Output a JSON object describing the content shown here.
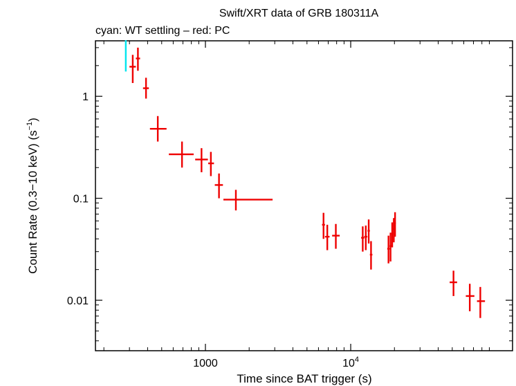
{
  "chart_data": {
    "type": "scatter",
    "title": "Swift/XRT data of GRB 180311A",
    "subtitle": "cyan: WT settling – red: PC",
    "xlabel": "Time since BAT trigger (s)",
    "ylabel": "Count Rate (0.3−10 keV) (s",
    "ylabel_sup": "−1",
    "ylabel_end": ")",
    "xscale": "log",
    "yscale": "log",
    "xlim": [
      175,
      130000
    ],
    "ylim": [
      0.0032,
      3.5
    ],
    "x_ticks": [
      {
        "value": 1000,
        "label": "1000"
      },
      {
        "value": 10000,
        "label": "10",
        "sup": "4"
      }
    ],
    "y_ticks": [
      {
        "value": 0.01,
        "label": "0.01"
      },
      {
        "value": 0.1,
        "label": "0.1"
      },
      {
        "value": 1,
        "label": "1"
      }
    ],
    "colors": {
      "wt": "#00e5ee",
      "pc": "#ee0000"
    },
    "series": [
      {
        "key": "wt",
        "points": [
          {
            "x": 283,
            "xlo": 282,
            "xhi": 284,
            "y": 2.5,
            "ylo": 1.75,
            "yhi": 3.55
          }
        ]
      },
      {
        "key": "pc",
        "points": [
          {
            "x": 316,
            "xlo": 300,
            "xhi": 332,
            "y": 1.95,
            "ylo": 1.35,
            "yhi": 2.55
          },
          {
            "x": 343,
            "xlo": 332,
            "xhi": 355,
            "y": 2.35,
            "ylo": 1.78,
            "yhi": 3.0
          },
          {
            "x": 390,
            "xlo": 372,
            "xhi": 408,
            "y": 1.2,
            "ylo": 0.95,
            "yhi": 1.52
          },
          {
            "x": 470,
            "xlo": 415,
            "xhi": 540,
            "y": 0.48,
            "ylo": 0.36,
            "yhi": 0.64
          },
          {
            "x": 690,
            "xlo": 560,
            "xhi": 830,
            "y": 0.27,
            "ylo": 0.2,
            "yhi": 0.36
          },
          {
            "x": 940,
            "xlo": 850,
            "xhi": 1040,
            "y": 0.24,
            "ylo": 0.18,
            "yhi": 0.31
          },
          {
            "x": 1090,
            "xlo": 1045,
            "xhi": 1145,
            "y": 0.22,
            "ylo": 0.165,
            "yhi": 0.285
          },
          {
            "x": 1240,
            "xlo": 1160,
            "xhi": 1320,
            "y": 0.135,
            "ylo": 0.1,
            "yhi": 0.175
          },
          {
            "x": 1620,
            "xlo": 1330,
            "xhi": 2900,
            "y": 0.097,
            "ylo": 0.076,
            "yhi": 0.121
          },
          {
            "x": 6500,
            "xlo": 6350,
            "xhi": 6650,
            "y": 0.055,
            "ylo": 0.04,
            "yhi": 0.072
          },
          {
            "x": 6900,
            "xlo": 6650,
            "xhi": 7150,
            "y": 0.042,
            "ylo": 0.031,
            "yhi": 0.055
          },
          {
            "x": 7900,
            "xlo": 7450,
            "xhi": 8400,
            "y": 0.043,
            "ylo": 0.032,
            "yhi": 0.056
          },
          {
            "x": 12100,
            "xlo": 11800,
            "xhi": 12400,
            "y": 0.041,
            "ylo": 0.03,
            "yhi": 0.053
          },
          {
            "x": 12700,
            "xlo": 12400,
            "xhi": 13000,
            "y": 0.042,
            "ylo": 0.031,
            "yhi": 0.054
          },
          {
            "x": 13300,
            "xlo": 13050,
            "xhi": 13550,
            "y": 0.048,
            "ylo": 0.036,
            "yhi": 0.062
          },
          {
            "x": 13800,
            "xlo": 13550,
            "xhi": 14100,
            "y": 0.028,
            "ylo": 0.02,
            "yhi": 0.038
          },
          {
            "x": 18200,
            "xlo": 17850,
            "xhi": 18550,
            "y": 0.032,
            "ylo": 0.023,
            "yhi": 0.043
          },
          {
            "x": 18800,
            "xlo": 18500,
            "xhi": 19100,
            "y": 0.034,
            "ylo": 0.024,
            "yhi": 0.046
          },
          {
            "x": 19300,
            "xlo": 19050,
            "xhi": 19550,
            "y": 0.045,
            "ylo": 0.033,
            "yhi": 0.058
          },
          {
            "x": 19800,
            "xlo": 19550,
            "xhi": 20050,
            "y": 0.05,
            "ylo": 0.037,
            "yhi": 0.064
          },
          {
            "x": 20200,
            "xlo": 20000,
            "xhi": 20450,
            "y": 0.057,
            "ylo": 0.042,
            "yhi": 0.073
          },
          {
            "x": 51000,
            "xlo": 48000,
            "xhi": 54000,
            "y": 0.015,
            "ylo": 0.011,
            "yhi": 0.0195
          },
          {
            "x": 66000,
            "xlo": 62000,
            "xhi": 71000,
            "y": 0.011,
            "ylo": 0.0078,
            "yhi": 0.0145
          },
          {
            "x": 78000,
            "xlo": 74000,
            "xhi": 84000,
            "y": 0.0098,
            "ylo": 0.0067,
            "yhi": 0.0135
          }
        ]
      }
    ]
  }
}
